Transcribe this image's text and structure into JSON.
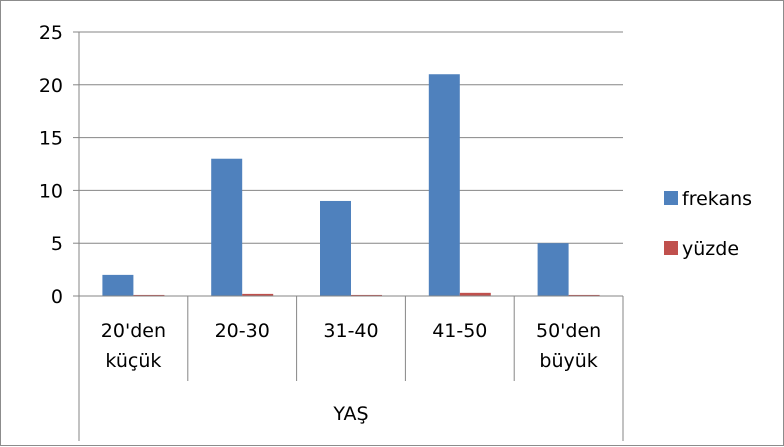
{
  "chart_data": {
    "type": "bar",
    "categories": [
      [
        "20'den",
        "küçük"
      ],
      [
        "20-30"
      ],
      [
        "31-40"
      ],
      [
        "41-50"
      ],
      [
        "50'den",
        "büyük"
      ]
    ],
    "group_label": "YAŞ",
    "series": [
      {
        "name": "frekans",
        "values": [
          2,
          13,
          9,
          21,
          5
        ],
        "color": "#4f81bd"
      },
      {
        "name": "yüzde",
        "values": [
          0.1,
          0.2,
          0.1,
          0.3,
          0.1
        ],
        "color": "#c0504d"
      }
    ],
    "ylim": [
      0,
      25
    ],
    "yticks": [
      "0",
      "5",
      "10",
      "15",
      "20",
      "25"
    ],
    "grid": true,
    "legend": "right",
    "title": "",
    "xlabel": "",
    "ylabel": ""
  }
}
